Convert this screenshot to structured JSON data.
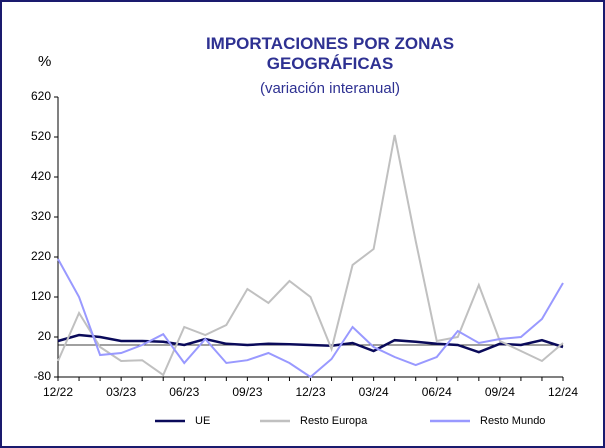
{
  "chart_data": {
    "type": "line",
    "title": "IMPORTACIONES POR ZONAS GEOGRÁFICAS",
    "subtitle": "(variación interanual)",
    "y_label": "%",
    "categories": [
      "12/22",
      null,
      null,
      "03/23",
      null,
      null,
      "06/23",
      null,
      null,
      "09/23",
      null,
      null,
      "12/23",
      null,
      null,
      "03/24",
      null,
      null,
      "06/24",
      null,
      null,
      "09/24",
      null,
      null,
      "12/24"
    ],
    "series": [
      {
        "name": "UE",
        "color": "#0a0a5a",
        "values": [
          10,
          25,
          20,
          10,
          10,
          8,
          0,
          15,
          3,
          0,
          3,
          2,
          0,
          -2,
          5,
          -15,
          12,
          8,
          3,
          0,
          -18,
          3,
          0,
          12,
          -5
        ]
      },
      {
        "name": "Resto Europa",
        "color": "#c0c0c0",
        "values": [
          -40,
          80,
          -5,
          -40,
          -38,
          -75,
          45,
          25,
          50,
          140,
          105,
          160,
          120,
          -10,
          200,
          240,
          525,
          260,
          10,
          20,
          150,
          10,
          -15,
          -40,
          5
        ]
      },
      {
        "name": "Resto Mundo",
        "color": "#9999ff",
        "values": [
          215,
          120,
          -25,
          -20,
          0,
          27,
          -45,
          15,
          -45,
          -38,
          -20,
          -45,
          -80,
          -35,
          45,
          -5,
          -30,
          -50,
          -30,
          35,
          5,
          15,
          20,
          65,
          155
        ]
      }
    ],
    "ylim": [
      -80,
      620
    ],
    "yticks": [
      -80,
      20,
      120,
      220,
      320,
      420,
      520,
      620
    ]
  }
}
